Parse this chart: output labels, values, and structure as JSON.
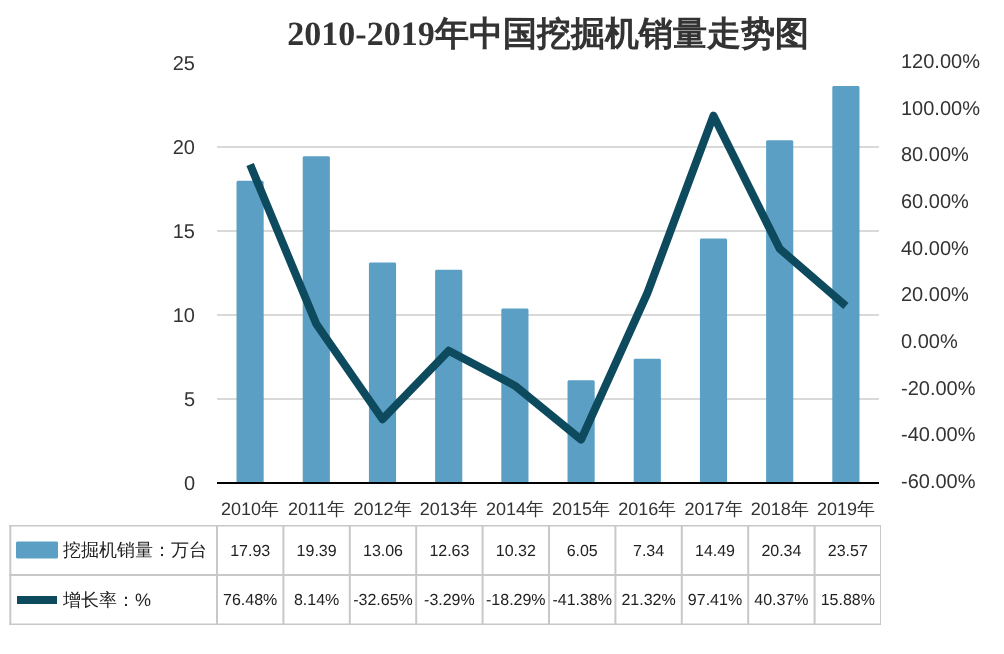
{
  "chart_data": {
    "type": "bar",
    "title": "2010-2019年中国挖掘机销量走势图",
    "categories": [
      "2010年",
      "2011年",
      "2012年",
      "2013年",
      "2014年",
      "2015年",
      "2016年",
      "2017年",
      "2018年",
      "2019年"
    ],
    "series": [
      {
        "name": "挖掘机销量：万台",
        "color": "#5b9fc4",
        "values": [
          17.93,
          19.39,
          13.06,
          12.63,
          10.32,
          6.05,
          7.34,
          14.49,
          20.34,
          23.57
        ],
        "value_labels": [
          "17.93",
          "19.39",
          "13.06",
          "12.63",
          "10.32",
          "6.05",
          "7.34",
          "14.49",
          "20.34",
          "23.57"
        ]
      },
      {
        "name": "增长率：%",
        "type": "line",
        "axis": "y2",
        "color": "#0d4a5e",
        "values": [
          76.48,
          8.14,
          -32.65,
          -3.29,
          -18.29,
          -41.38,
          21.32,
          97.41,
          40.37,
          15.88
        ],
        "value_labels": [
          "76.48%",
          "8.14%",
          "-32.65%",
          "-3.29%",
          "-18.29%",
          "-41.38%",
          "21.32%",
          "97.41%",
          "40.37%",
          "15.88%"
        ]
      }
    ],
    "ylim": [
      0,
      25
    ],
    "yticks": [
      0,
      5,
      10,
      15,
      20,
      25
    ],
    "y2lim": [
      -60,
      120
    ],
    "y2ticks": [
      {
        "value": -60,
        "label": "-60.00%"
      },
      {
        "value": -40,
        "label": "-40.00%"
      },
      {
        "value": -20,
        "label": "-20.00%"
      },
      {
        "value": 0,
        "label": "0.00%"
      },
      {
        "value": 20,
        "label": "20.00%"
      },
      {
        "value": 40,
        "label": "40.00%"
      },
      {
        "value": 60,
        "label": "60.00%"
      },
      {
        "value": 80,
        "label": "80.00%"
      },
      {
        "value": 100,
        "label": "100.00%"
      },
      {
        "value": 120,
        "label": "120.00%"
      }
    ],
    "grid": "y",
    "legend": "bottom"
  }
}
